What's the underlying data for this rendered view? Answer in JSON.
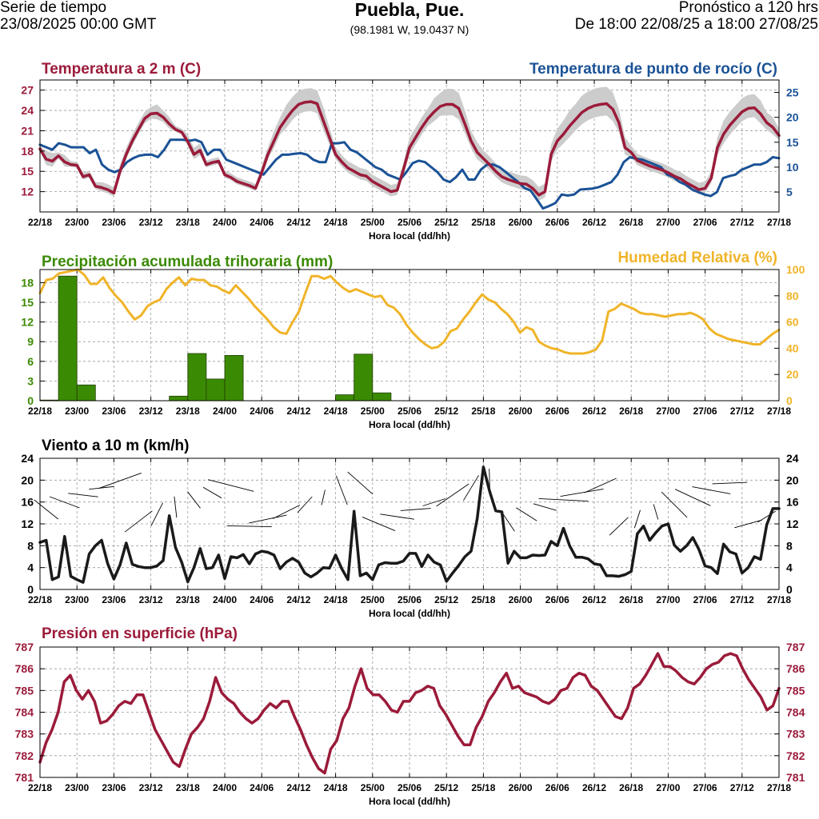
{
  "header": {
    "left_line1": "Serie de tiempo",
    "left_line2": "23/08/2025 00:00 GMT",
    "title": "Puebla, Pue.",
    "coords": "(98.1981 W, 19.0437 N)",
    "right_line1": "Pronóstico a 120 hrs",
    "right_line2": "De 18:00 22/08/25 a 18:00 27/08/25"
  },
  "colors": {
    "temperature": "#9b1b3a",
    "dewpoint": "#1a5296",
    "precipitation": "#3b8a04",
    "humidity": "#f0b429",
    "wind": "#1a1a1a",
    "pressure": "#9b1b3a",
    "band": "#cccccc"
  },
  "chart_data": [
    {
      "type": "line",
      "title": "Temperatura a 2 m (C)",
      "title_right": "Temperatura de punto de rocío (C)",
      "xlabel": "Hora local (dd/hh)",
      "x_ticks": [
        "22/18",
        "23/00",
        "23/06",
        "23/12",
        "23/18",
        "24/00",
        "24/06",
        "24/12",
        "24/18",
        "25/00",
        "25/06",
        "25/12",
        "25/18",
        "26/00",
        "26/06",
        "26/12",
        "26/18",
        "27/00",
        "27/06",
        "27/12",
        "27/18"
      ],
      "ylim_left": [
        9,
        28.5
      ],
      "yticks_left": [
        12,
        15,
        18,
        21,
        24,
        27
      ],
      "ylim_right": [
        1,
        27.5
      ],
      "yticks_right": [
        5,
        10,
        15,
        20,
        25
      ],
      "series": [
        {
          "name": "Temperatura a 2 m",
          "axis": "left",
          "values": [
            18.3,
            16.8,
            16.5,
            17.3,
            16.4,
            16.0,
            15.9,
            14.2,
            14.5,
            12.8,
            12.6,
            12.3,
            11.8,
            15.0,
            17.5,
            19.5,
            21.2,
            22.8,
            23.5,
            23.6,
            23.0,
            22.0,
            21.2,
            20.8,
            19.4,
            17.5,
            18.1,
            16.0,
            16.3,
            16.5,
            14.5,
            14.1,
            13.5,
            13.2,
            12.9,
            12.5,
            14.8,
            17.5,
            19.5,
            21.5,
            22.8,
            24.0,
            24.9,
            25.2,
            25.3,
            25.0,
            22.5,
            20.0,
            17.5,
            16.4,
            15.5,
            15.0,
            14.5,
            14.3,
            13.5,
            13.0,
            12.5,
            12.0,
            12.2,
            15.2,
            18.5,
            20.0,
            21.5,
            22.8,
            23.8,
            24.6,
            24.9,
            24.9,
            24.3,
            22.0,
            19.5,
            17.8,
            16.9,
            16.0,
            15.0,
            14.2,
            13.8,
            13.5,
            13.2,
            13.1,
            12.5,
            11.5,
            12.0,
            17.5,
            19.5,
            20.5,
            21.7,
            22.7,
            23.7,
            24.3,
            24.7,
            24.9,
            25.0,
            24.2,
            22.2,
            18.5,
            17.8,
            16.6,
            16.2,
            15.8,
            15.5,
            15.2,
            14.8,
            14.3,
            13.9,
            13.3,
            12.8,
            12.3,
            12.5,
            14.0,
            18.5,
            20.5,
            21.8,
            22.8,
            23.8,
            24.3,
            24.4,
            23.5,
            22.2,
            21.5,
            20.3
          ]
        },
        {
          "name": "Temperatura de punto de rocío",
          "axis": "right",
          "values": [
            14.5,
            14.0,
            13.5,
            14.8,
            14.5,
            14.0,
            14.0,
            14.0,
            12.8,
            13.5,
            10.5,
            9.5,
            9.0,
            9.5,
            11.0,
            11.8,
            12.3,
            12.5,
            12.5,
            12.0,
            13.5,
            15.5,
            15.5,
            15.5,
            15.3,
            15.5,
            15.0,
            12.5,
            13.5,
            13.5,
            11.5,
            11.0,
            10.5,
            10.0,
            9.5,
            9.0,
            8.5,
            10.0,
            11.5,
            12.5,
            12.5,
            12.7,
            12.8,
            12.5,
            11.5,
            11.0,
            11.0,
            14.8,
            14.8,
            15.0,
            13.5,
            13.0,
            12.0,
            11.0,
            10.0,
            9.5,
            8.5,
            8.0,
            7.5,
            9.0,
            10.8,
            11.3,
            11.0,
            10.0,
            9.0,
            7.5,
            7.0,
            8.0,
            9.5,
            7.5,
            7.5,
            9.5,
            10.5,
            10.5,
            10.0,
            9.0,
            8.0,
            7.0,
            5.8,
            5.3,
            3.5,
            1.7,
            2.2,
            2.8,
            4.5,
            4.3,
            4.5,
            5.5,
            5.6,
            5.7,
            6.0,
            6.5,
            7.0,
            8.5,
            11.0,
            12.0,
            11.7,
            11.5,
            11.0,
            10.5,
            10.0,
            8.5,
            8.0,
            7.0,
            6.5,
            5.5,
            5.0,
            4.5,
            4.2,
            5.0,
            7.8,
            8.2,
            8.5,
            9.5,
            10.0,
            10.5,
            10.5,
            11.0,
            12.0,
            11.8
          ]
        }
      ],
      "band_offsets": [
        0.5,
        1.2,
        1.2,
        0.5,
        1.0,
        0.5,
        0.5,
        0.6,
        0.6,
        0.6,
        0.8,
        0.8,
        0.8,
        1.0,
        1.0,
        1.0,
        1.0,
        1.0,
        1.0,
        1.3,
        1.0,
        1.0,
        0.5,
        0.5,
        1.0,
        1.0,
        1.0,
        0.6,
        0.6,
        0.6,
        0.6,
        0.6,
        0.6,
        0.6,
        0.6,
        0.6,
        1.0,
        1.0,
        1.5,
        1.5,
        2.0,
        2.0,
        2.0,
        2.0,
        2.0,
        2.0,
        2.0,
        1.5,
        1.0,
        1.0,
        1.0,
        1.0,
        1.0,
        1.0,
        1.0,
        1.0,
        1.0,
        1.0,
        1.0,
        1.0,
        1.5,
        1.5,
        1.5,
        1.5,
        2.0,
        2.0,
        2.3,
        2.3,
        2.3,
        2.0,
        1.5,
        1.5,
        1.2,
        1.2,
        1.2,
        1.2,
        1.2,
        1.2,
        1.2,
        1.2,
        1.2,
        1.2,
        1.2,
        1.5,
        1.8,
        2.0,
        2.3,
        2.3,
        2.5,
        2.5,
        2.5,
        2.5,
        2.5,
        2.5,
        2.0,
        1.5,
        1.0,
        1.0,
        1.0,
        1.0,
        1.0,
        1.0,
        1.0,
        1.0,
        1.0,
        1.0,
        1.0,
        1.0,
        1.0,
        1.0,
        1.5,
        2.0,
        2.0,
        2.0,
        2.0,
        2.0,
        2.0,
        2.0,
        1.5,
        1.5,
        1.0
      ]
    },
    {
      "type": "bar+line",
      "title": "Precipitación acumulada trihoraria (mm)",
      "title_right": "Humedad Relativa (%)",
      "xlabel": "Hora local (dd/hh)",
      "x_ticks": [
        "22/18",
        "23/00",
        "23/06",
        "23/12",
        "23/18",
        "24/00",
        "24/06",
        "24/12",
        "24/18",
        "25/00",
        "25/06",
        "25/12",
        "25/18",
        "26/00",
        "26/06",
        "26/12",
        "26/18",
        "27/00",
        "27/06",
        "27/12",
        "27/18"
      ],
      "ylim_left": [
        0,
        20
      ],
      "yticks_left": [
        0,
        3,
        6,
        9,
        12,
        15,
        18
      ],
      "ylim_right": [
        0,
        100
      ],
      "yticks_right": [
        0,
        20,
        40,
        60,
        80,
        100
      ],
      "precipitation_3h": [
        0.1,
        19.0,
        2.4,
        0,
        0,
        0,
        0,
        0.7,
        7.2,
        3.3,
        6.9,
        0,
        0,
        0,
        0,
        0,
        0.9,
        7.1,
        1.2,
        0,
        0,
        0,
        0,
        0,
        0,
        0,
        0,
        0,
        0,
        0,
        0,
        0,
        0,
        0,
        0,
        0,
        0,
        0,
        0,
        0,
        0
      ],
      "humidity": [
        82,
        92,
        93,
        97,
        98,
        99,
        100,
        96,
        89,
        89,
        94,
        86,
        80,
        75,
        68,
        62,
        65,
        72,
        75,
        77,
        85,
        90,
        94,
        88,
        93,
        92,
        92,
        88,
        87,
        84,
        82,
        88,
        83,
        78,
        72,
        67,
        62,
        56,
        52,
        51,
        60,
        68,
        82,
        95,
        95,
        93,
        95,
        90,
        86,
        83,
        85,
        83,
        81,
        79,
        80,
        73,
        71,
        66,
        58,
        52,
        47,
        43,
        40,
        41,
        45,
        53,
        55,
        62,
        68,
        75,
        81,
        77,
        75,
        70,
        66,
        60,
        52,
        56,
        54,
        45,
        42,
        40,
        39,
        37,
        36,
        36,
        36,
        37,
        39,
        46,
        68,
        70,
        74,
        72,
        70,
        67,
        66,
        66,
        65,
        64,
        65,
        66,
        66,
        67,
        65,
        62,
        55,
        51,
        49,
        47,
        46,
        45,
        44,
        43,
        43,
        47,
        51,
        54
      ]
    },
    {
      "type": "line",
      "title": "Viento a 10 m (km/h)",
      "xlabel": "Hora local (dd/hh)",
      "x_ticks": [
        "22/18",
        "23/00",
        "23/06",
        "23/12",
        "23/18",
        "24/00",
        "24/06",
        "24/12",
        "24/18",
        "25/00",
        "25/06",
        "25/12",
        "25/18",
        "26/00",
        "26/06",
        "26/12",
        "26/18",
        "27/00",
        "27/06",
        "27/12",
        "27/18"
      ],
      "ylim": [
        0,
        24
      ],
      "yticks": [
        0,
        4,
        8,
        12,
        16,
        20,
        24
      ],
      "wind_speed": [
        8.6,
        9.0,
        1.8,
        2.3,
        9.7,
        2.4,
        1.8,
        1.3,
        6.5,
        8.0,
        9.0,
        4.7,
        1.9,
        4.5,
        8.5,
        4.6,
        4.2,
        4.0,
        4.0,
        4.3,
        5.3,
        13.5,
        7.7,
        5.0,
        1.4,
        4.0,
        7.5,
        3.8,
        4.0,
        6.3,
        2.0,
        6.0,
        5.8,
        6.4,
        4.7,
        6.5,
        7.0,
        6.8,
        6.3,
        3.8,
        5.0,
        5.7,
        5.0,
        3.0,
        2.3,
        3.0,
        4.0,
        3.9,
        6.3,
        3.8,
        1.8,
        14.3,
        2.5,
        3.0,
        1.8,
        4.5,
        4.9,
        4.8,
        4.8,
        5.2,
        6.6,
        6.6,
        4.2,
        6.3,
        5.0,
        4.5,
        1.5,
        3.0,
        4.4,
        6.0,
        7.0,
        13.0,
        22.4,
        18.0,
        14.4,
        14.2,
        4.8,
        7.0,
        5.8,
        5.8,
        6.3,
        6.2,
        6.3,
        8.8,
        8.0,
        11.2,
        8.0,
        5.9,
        5.9,
        5.6,
        4.7,
        4.5,
        2.5,
        2.5,
        2.4,
        2.7,
        3.3,
        10.2,
        11.6,
        9.0,
        10.4,
        11.6,
        12.0,
        8.1,
        7.0,
        8.0,
        9.5,
        7.3,
        4.3,
        4.0,
        2.9,
        8.3,
        6.9,
        6.5,
        3.0,
        4.0,
        6.0,
        5.5,
        11.8,
        14.8,
        14.8
      ]
    },
    {
      "type": "line",
      "title": "Presión en superficie (hPa)",
      "xlabel": "Hora local (dd/hh)",
      "x_ticks": [
        "22/18",
        "23/00",
        "23/06",
        "23/12",
        "23/18",
        "24/00",
        "24/06",
        "24/12",
        "24/18",
        "25/00",
        "25/06",
        "25/12",
        "25/18",
        "26/00",
        "26/06",
        "26/12",
        "26/18",
        "27/00",
        "27/06",
        "27/12",
        "27/18"
      ],
      "ylim": [
        781,
        787
      ],
      "yticks": [
        781,
        782,
        783,
        784,
        785,
        786,
        787
      ],
      "values": [
        781.7,
        782.6,
        783.2,
        784.0,
        785.4,
        785.7,
        785.0,
        784.6,
        785.0,
        784.5,
        783.5,
        783.6,
        783.9,
        784.3,
        784.5,
        784.4,
        784.8,
        784.8,
        784.0,
        783.2,
        782.7,
        782.2,
        781.7,
        781.5,
        782.3,
        783.0,
        783.3,
        783.7,
        784.5,
        785.6,
        784.9,
        784.6,
        784.4,
        784.0,
        783.7,
        783.5,
        783.7,
        784.1,
        784.4,
        784.2,
        784.5,
        784.5,
        783.8,
        783.2,
        782.5,
        781.9,
        781.4,
        781.2,
        782.3,
        782.7,
        783.7,
        784.2,
        785.2,
        786.0,
        785.1,
        784.8,
        784.8,
        784.5,
        784.1,
        784.0,
        784.5,
        784.5,
        784.9,
        785.0,
        785.2,
        785.1,
        784.3,
        783.9,
        783.4,
        782.9,
        782.5,
        782.5,
        783.3,
        783.8,
        784.5,
        784.9,
        785.4,
        785.8,
        785.1,
        785.2,
        784.9,
        784.8,
        784.7,
        784.5,
        784.4,
        784.6,
        785.0,
        785.1,
        785.6,
        785.8,
        785.7,
        785.2,
        785.0,
        784.6,
        784.2,
        783.8,
        783.7,
        784.2,
        785.1,
        785.3,
        785.7,
        786.2,
        786.7,
        786.1,
        786.1,
        785.9,
        785.6,
        785.4,
        785.3,
        785.6,
        786.0,
        786.2,
        786.3,
        786.6,
        786.7,
        786.6,
        786.0,
        785.5,
        785.1,
        784.7,
        784.1,
        784.3,
        785.1
      ]
    }
  ]
}
